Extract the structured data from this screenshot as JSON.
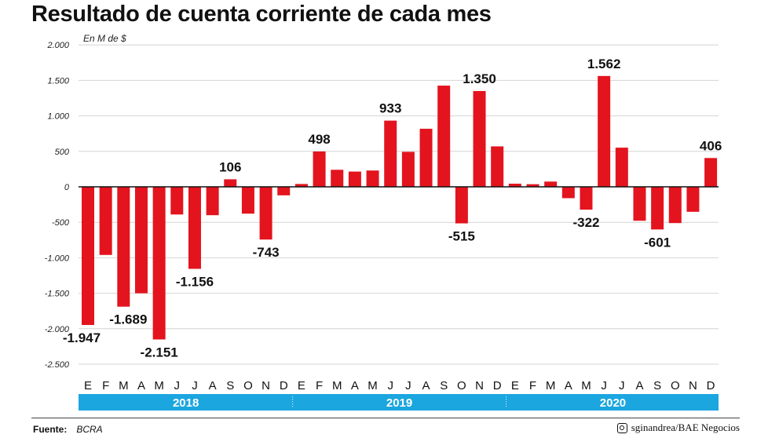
{
  "chart_data": {
    "type": "bar",
    "title": "Resultado de cuenta corriente de cada mes",
    "ylabel": "En M de $",
    "ylim": [
      -2500,
      2000
    ],
    "yticks": [
      2000,
      1500,
      1000,
      500,
      0,
      -500,
      -1000,
      -1500,
      -2000,
      -2500
    ],
    "ytick_labels": [
      "2.000",
      "1.500",
      "1.000",
      "500",
      "0",
      "-500",
      "-1.000",
      "-1.500",
      "-2.000",
      "-2.500"
    ],
    "grid": true,
    "bar_color": "#e3141e",
    "year_band_color": "#1ba6df",
    "years": [
      "2018",
      "2019",
      "2020"
    ],
    "categories": [
      "E",
      "F",
      "M",
      "A",
      "M",
      "J",
      "J",
      "A",
      "S",
      "O",
      "N",
      "D",
      "E",
      "F",
      "M",
      "A",
      "M",
      "J",
      "J",
      "A",
      "S",
      "O",
      "N",
      "D",
      "E",
      "F",
      "M",
      "A",
      "M",
      "J",
      "J",
      "A",
      "S",
      "O",
      "N",
      "D"
    ],
    "values": [
      -1947,
      -960,
      -1689,
      -1500,
      -2151,
      -390,
      -1156,
      -400,
      106,
      -378,
      -743,
      -120,
      40,
      498,
      240,
      215,
      230,
      933,
      493,
      818,
      1426,
      -515,
      1350,
      570,
      44,
      37,
      74,
      -160,
      -322,
      1562,
      552,
      -478,
      -601,
      -511,
      -352,
      406
    ],
    "data_labels": [
      {
        "index": 0,
        "text": "-1.947"
      },
      {
        "index": 2,
        "text": "-1.689"
      },
      {
        "index": 4,
        "text": "-2.151"
      },
      {
        "index": 6,
        "text": "-1.156"
      },
      {
        "index": 8,
        "text": "106"
      },
      {
        "index": 10,
        "text": "-743"
      },
      {
        "index": 13,
        "text": "498"
      },
      {
        "index": 17,
        "text": "933"
      },
      {
        "index": 21,
        "text": "-515"
      },
      {
        "index": 22,
        "text": "1.350"
      },
      {
        "index": 28,
        "text": "-322"
      },
      {
        "index": 29,
        "text": "1.562"
      },
      {
        "index": 32,
        "text": "-601"
      },
      {
        "index": 35,
        "text": "406"
      }
    ]
  },
  "footer": {
    "source_label": "Fuente:",
    "source": "BCRA",
    "credit": "sginandrea/BAE Negocios",
    "credit_icon": "instagram-icon"
  }
}
